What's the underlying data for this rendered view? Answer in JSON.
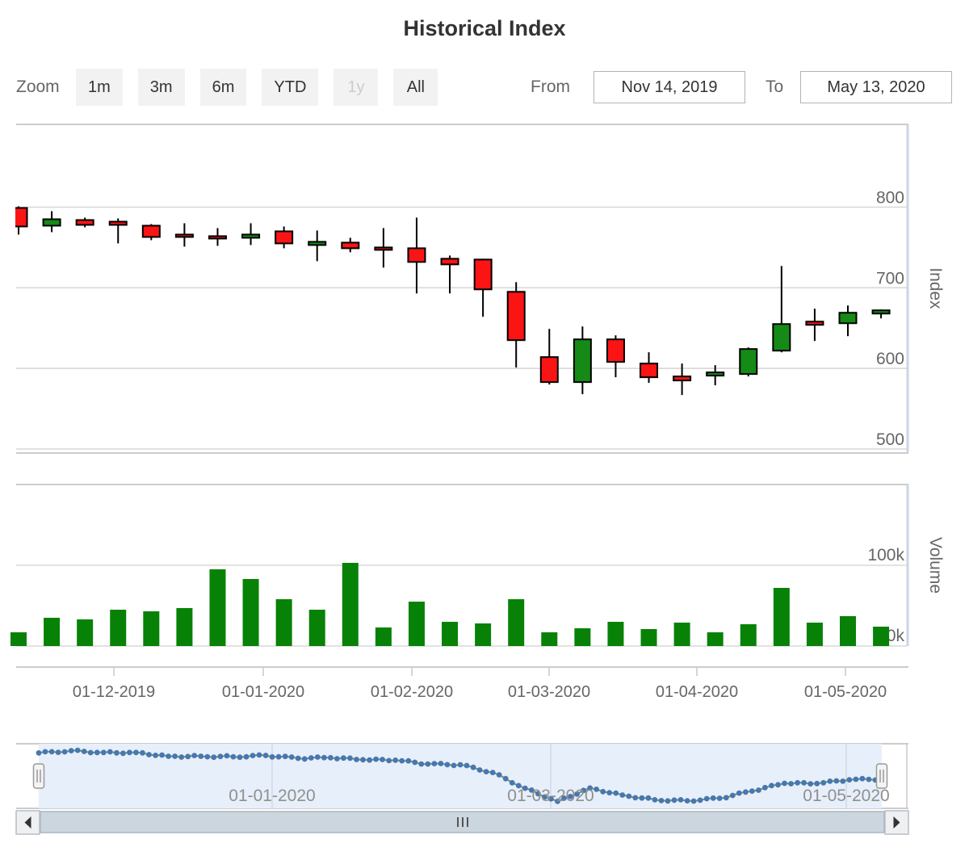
{
  "title": "Historical Index",
  "range_selector": {
    "zoom_label": "Zoom",
    "buttons": [
      {
        "label": "1m",
        "enabled": true
      },
      {
        "label": "3m",
        "enabled": true
      },
      {
        "label": "6m",
        "enabled": true
      },
      {
        "label": "YTD",
        "enabled": true
      },
      {
        "label": "1y",
        "enabled": false
      },
      {
        "label": "All",
        "enabled": true
      }
    ],
    "from_label": "From",
    "from_value": "Nov 14, 2019",
    "to_label": "To",
    "to_value": "May 13, 2020"
  },
  "chart_data": {
    "type": "candlestick",
    "title": "Historical Index",
    "index_axis": {
      "title": "Index",
      "range": [
        500,
        800
      ],
      "ticks": [
        {
          "value": 800,
          "label": "800"
        },
        {
          "value": 700,
          "label": "700"
        },
        {
          "value": 600,
          "label": "600"
        },
        {
          "value": 500,
          "label": "500"
        }
      ]
    },
    "volume_axis": {
      "title": "Volume",
      "range": [
        0,
        200000
      ],
      "ticks": [
        {
          "value": 100000,
          "label": "100k"
        },
        {
          "value": 0,
          "label": "0k"
        }
      ]
    },
    "x_axis": {
      "tick_labels": [
        "01-12-2019",
        "01-01-2020",
        "01-02-2020",
        "01-03-2020",
        "01-04-2020",
        "01-05-2020"
      ]
    },
    "candles": [
      {
        "date": "2019-11-14",
        "open": 799,
        "high": 801,
        "low": 766,
        "close": 776,
        "volume": 17000
      },
      {
        "date": "2019-11-21",
        "open": 777,
        "high": 795,
        "low": 769,
        "close": 785,
        "volume": 35000
      },
      {
        "date": "2019-11-28",
        "open": 784,
        "high": 787,
        "low": 775,
        "close": 778,
        "volume": 33000
      },
      {
        "date": "2019-12-05",
        "open": 782,
        "high": 786,
        "low": 755,
        "close": 778,
        "volume": 45000
      },
      {
        "date": "2019-12-12",
        "open": 777,
        "high": 779,
        "low": 759,
        "close": 763,
        "volume": 43000
      },
      {
        "date": "2019-12-19",
        "open": 766,
        "high": 780,
        "low": 751,
        "close": 763,
        "volume": 47000
      },
      {
        "date": "2019-12-26",
        "open": 764,
        "high": 774,
        "low": 752,
        "close": 761,
        "volume": 95000
      },
      {
        "date": "2020-01-02",
        "open": 762,
        "high": 780,
        "low": 753,
        "close": 766,
        "volume": 83000
      },
      {
        "date": "2020-01-09",
        "open": 770,
        "high": 776,
        "low": 749,
        "close": 755,
        "volume": 58000
      },
      {
        "date": "2020-01-16",
        "open": 753,
        "high": 771,
        "low": 733,
        "close": 757,
        "volume": 45000
      },
      {
        "date": "2020-01-23",
        "open": 756,
        "high": 762,
        "low": 744,
        "close": 749,
        "volume": 103000
      },
      {
        "date": "2020-01-30",
        "open": 750,
        "high": 774,
        "low": 725,
        "close": 747,
        "volume": 23000
      },
      {
        "date": "2020-02-06",
        "open": 749,
        "high": 787,
        "low": 693,
        "close": 732,
        "volume": 55000
      },
      {
        "date": "2020-02-13",
        "open": 736,
        "high": 740,
        "low": 693,
        "close": 729,
        "volume": 30000
      },
      {
        "date": "2020-02-20",
        "open": 735,
        "high": 736,
        "low": 664,
        "close": 698,
        "volume": 28000
      },
      {
        "date": "2020-02-27",
        "open": 695,
        "high": 707,
        "low": 601,
        "close": 635,
        "volume": 58000
      },
      {
        "date": "2020-03-05",
        "open": 614,
        "high": 649,
        "low": 580,
        "close": 583,
        "volume": 17000
      },
      {
        "date": "2020-03-12",
        "open": 583,
        "high": 652,
        "low": 568,
        "close": 636,
        "volume": 22000
      },
      {
        "date": "2020-03-19",
        "open": 636,
        "high": 641,
        "low": 589,
        "close": 608,
        "volume": 30000
      },
      {
        "date": "2020-03-26",
        "open": 606,
        "high": 620,
        "low": 582,
        "close": 589,
        "volume": 21000
      },
      {
        "date": "2020-04-02",
        "open": 590,
        "high": 606,
        "low": 567,
        "close": 585,
        "volume": 29000
      },
      {
        "date": "2020-04-09",
        "open": 591,
        "high": 604,
        "low": 579,
        "close": 595,
        "volume": 17000
      },
      {
        "date": "2020-04-16",
        "open": 593,
        "high": 626,
        "low": 590,
        "close": 624,
        "volume": 27000
      },
      {
        "date": "2020-04-23",
        "open": 622,
        "high": 727,
        "low": 620,
        "close": 655,
        "volume": 72000
      },
      {
        "date": "2020-04-30",
        "open": 658,
        "high": 674,
        "low": 634,
        "close": 654,
        "volume": 29000
      },
      {
        "date": "2020-05-07",
        "open": 656,
        "high": 678,
        "low": 640,
        "close": 669,
        "volume": 37000
      },
      {
        "date": "2020-05-13",
        "open": 668,
        "high": 673,
        "low": 662,
        "close": 672,
        "volume": 24000
      }
    ],
    "navigator": {
      "tick_labels": [
        "01-01-2020",
        "01-03-2020",
        "01-05-2020"
      ],
      "series": "close"
    },
    "legend": "off",
    "grid": "on"
  },
  "colors": {
    "up": "#168a16",
    "down": "#fb1414",
    "candle_border": "#000000",
    "volume_bar": "#078207",
    "grid": "#d8d8d8",
    "pane_border": "#cccccc",
    "axis_text": "#666666",
    "right_axis_line": "#c9d6e4",
    "nav_bg": "#e7effa",
    "nav_grid": "#c9d6e6",
    "nav_line": "#5ca05c",
    "nav_marker": "#4a76b0",
    "nav_label": "#8f8f8f",
    "scroll_thumb": "#ccd6de",
    "scroll_thumb_border": "#a9b6c0",
    "scroll_button": "#eef0f2",
    "scroll_button_border": "#b8bec4"
  }
}
